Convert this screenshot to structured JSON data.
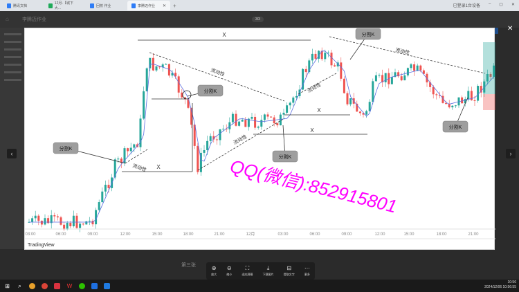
{
  "browser": {
    "tabs": [
      {
        "label": "腾讯文档",
        "icon": "doc-icon"
      },
      {
        "label": "12月-【城下大...",
        "icon": "sheet-icon"
      },
      {
        "label": "回校 作业",
        "icon": "doc-icon"
      },
      {
        "label": "李腾迈作业",
        "icon": "doc-icon",
        "active": true
      }
    ],
    "right_status": "已登录1台设备"
  },
  "doc": {
    "title": "李腾迈作业",
    "page_counter": "3/3",
    "caption": "第三张"
  },
  "chart": {
    "x_ticks": [
      "03:00",
      "06:00",
      "09:00",
      "12:00",
      "15:00",
      "18:00",
      "21:00",
      "12月",
      "03:00",
      "06:00",
      "09:00",
      "12:00",
      "15:00",
      "18:00",
      "21:00"
    ],
    "brand": "TradingView",
    "annotations": {
      "x": "X",
      "split": "分割K",
      "liquidity": "流动性"
    },
    "watermark": "QQ(微信):852915801",
    "colors": {
      "up": "#26a69a",
      "down": "#ef5350",
      "ma": "#5b6ee1",
      "watermark": "#ff00ff"
    }
  },
  "toolbar": [
    {
      "label": "放大",
      "icon": "zoom-in-icon"
    },
    {
      "label": "缩小",
      "icon": "zoom-out-icon"
    },
    {
      "label": "适应屏幕",
      "icon": "fit-screen-icon"
    },
    {
      "label": "下载图片",
      "icon": "download-icon"
    },
    {
      "label": "提取文字",
      "icon": "extract-text-icon"
    },
    {
      "label": "更多",
      "icon": "more-icon"
    }
  ],
  "taskbar": {
    "time": "10:56",
    "date": "2024/12/06 10:56:55"
  }
}
